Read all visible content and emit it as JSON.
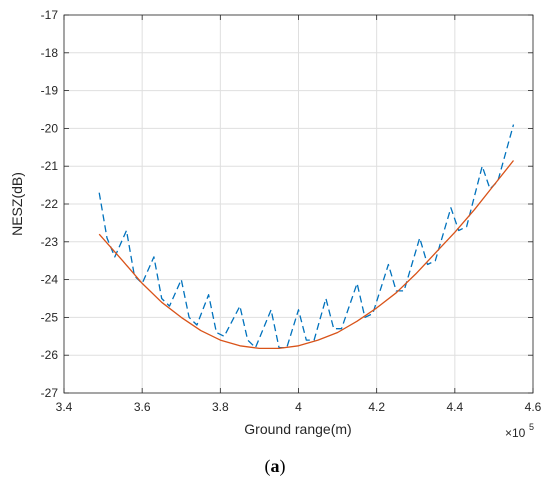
{
  "caption": {
    "open": "(",
    "letter": "a",
    "close": ")"
  },
  "chart_data": {
    "type": "line",
    "xlabel": "Ground range(m)",
    "ylabel": "NESZ(dB)",
    "x_exponent_label": "×10",
    "x_exponent_power": "5",
    "xlim": [
      3.4,
      4.6
    ],
    "ylim": [
      -27,
      -17
    ],
    "xticks": [
      "3.4",
      "3.6",
      "3.8",
      "4",
      "4.2",
      "4.4",
      "4.6"
    ],
    "yticks": [
      "-17",
      "-18",
      "-19",
      "-20",
      "-21",
      "-22",
      "-23",
      "-24",
      "-25",
      "-26",
      "-27"
    ],
    "grid": true,
    "series": [
      {
        "style": "dashed",
        "color": "#0072BD",
        "x": [
          3.49,
          3.51,
          3.53,
          3.56,
          3.58,
          3.6,
          3.63,
          3.65,
          3.67,
          3.7,
          3.72,
          3.74,
          3.77,
          3.79,
          3.81,
          3.85,
          3.87,
          3.89,
          3.93,
          3.95,
          3.97,
          4.0,
          4.02,
          4.04,
          4.07,
          4.09,
          4.11,
          4.15,
          4.17,
          4.19,
          4.23,
          4.25,
          4.27,
          4.31,
          4.33,
          4.35,
          4.39,
          4.41,
          4.43,
          4.47,
          4.49,
          4.51,
          4.55
        ],
        "y": [
          -21.7,
          -22.9,
          -23.4,
          -22.7,
          -23.9,
          -24.1,
          -23.4,
          -24.5,
          -24.7,
          -24.0,
          -25.0,
          -25.2,
          -24.4,
          -25.4,
          -25.5,
          -24.7,
          -25.6,
          -25.8,
          -24.8,
          -25.8,
          -25.8,
          -24.8,
          -25.6,
          -25.6,
          -24.5,
          -25.3,
          -25.3,
          -24.1,
          -25.0,
          -24.9,
          -23.6,
          -24.3,
          -24.3,
          -22.9,
          -23.6,
          -23.5,
          -22.1,
          -22.7,
          -22.6,
          -21.0,
          -21.6,
          -21.4,
          -19.9
        ]
      },
      {
        "style": "solid",
        "color": "#D95319",
        "x": [
          3.49,
          3.55,
          3.6,
          3.65,
          3.7,
          3.75,
          3.8,
          3.85,
          3.9,
          3.95,
          4.0,
          4.05,
          4.1,
          4.15,
          4.2,
          4.25,
          4.3,
          4.35,
          4.4,
          4.45,
          4.5,
          4.55
        ],
        "y": [
          -22.8,
          -23.5,
          -24.1,
          -24.6,
          -25.0,
          -25.35,
          -25.6,
          -25.75,
          -25.82,
          -25.82,
          -25.75,
          -25.6,
          -25.4,
          -25.1,
          -24.75,
          -24.35,
          -23.85,
          -23.3,
          -22.75,
          -22.15,
          -21.5,
          -20.85
        ]
      }
    ]
  }
}
